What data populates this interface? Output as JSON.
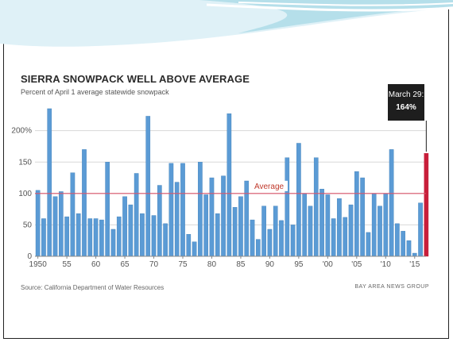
{
  "colors": {
    "bar": "#5b9bd5",
    "bar_stroke": "#3f7fb8",
    "highlight": "#c81e3a",
    "average_line": "#d9546a",
    "grid": "#d8d8d8",
    "callout_bg": "#1e1e1e",
    "band_light": "#dff1f7",
    "band_mid": "#b5dfea"
  },
  "chart": {
    "title": "SIERRA SNOWPACK WELL ABOVE AVERAGE",
    "subtitle": "Percent of April 1 average statewide snowpack",
    "source": "Source: California Department of Water Resources",
    "credit": "BAY AREA NEWS GROUP",
    "average_label": "Average",
    "callout_line1": "March 29:",
    "callout_line2": "164%"
  },
  "chart_data": {
    "type": "bar",
    "title": "SIERRA SNOWPACK WELL ABOVE AVERAGE",
    "subtitle": "Percent of April 1 average statewide snowpack",
    "xlabel": "",
    "ylabel": "",
    "ylim": [
      0,
      240
    ],
    "y_ticks": [
      0,
      50,
      100,
      150,
      200
    ],
    "y_tick_labels": [
      "0",
      "50",
      "100",
      "150",
      "200%"
    ],
    "x_tick_labels": [
      "1950",
      "55",
      "60",
      "65",
      "70",
      "75",
      "80",
      "85",
      "90",
      "95",
      "'00",
      "'05",
      "'10",
      "'15"
    ],
    "x_tick_years": [
      1950,
      1955,
      1960,
      1965,
      1970,
      1975,
      1980,
      1985,
      1990,
      1995,
      2000,
      2005,
      2010,
      2015
    ],
    "reference_line": {
      "name": "Average",
      "value": 100
    },
    "highlight": {
      "year": 2017,
      "value": 164,
      "label": "March 29: 164%"
    },
    "categories": [
      1950,
      1951,
      1952,
      1953,
      1954,
      1955,
      1956,
      1957,
      1958,
      1959,
      1960,
      1961,
      1962,
      1963,
      1964,
      1965,
      1966,
      1967,
      1968,
      1969,
      1970,
      1971,
      1972,
      1973,
      1974,
      1975,
      1976,
      1977,
      1978,
      1979,
      1980,
      1981,
      1982,
      1983,
      1984,
      1985,
      1986,
      1987,
      1988,
      1989,
      1990,
      1991,
      1992,
      1993,
      1994,
      1995,
      1996,
      1997,
      1998,
      1999,
      2000,
      2001,
      2002,
      2003,
      2004,
      2005,
      2006,
      2007,
      2008,
      2009,
      2010,
      2011,
      2012,
      2013,
      2014,
      2015,
      2016,
      2017
    ],
    "values": [
      105,
      60,
      235,
      95,
      103,
      63,
      133,
      68,
      170,
      60,
      60,
      58,
      150,
      43,
      63,
      95,
      82,
      132,
      68,
      223,
      65,
      113,
      52,
      148,
      118,
      148,
      35,
      23,
      150,
      98,
      125,
      68,
      128,
      227,
      78,
      95,
      120,
      58,
      27,
      80,
      43,
      80,
      57,
      157,
      50,
      180,
      100,
      80,
      157,
      107,
      98,
      60,
      92,
      62,
      82,
      135,
      125,
      38,
      100,
      80,
      100,
      170,
      52,
      40,
      25,
      5,
      85,
      164
    ]
  }
}
